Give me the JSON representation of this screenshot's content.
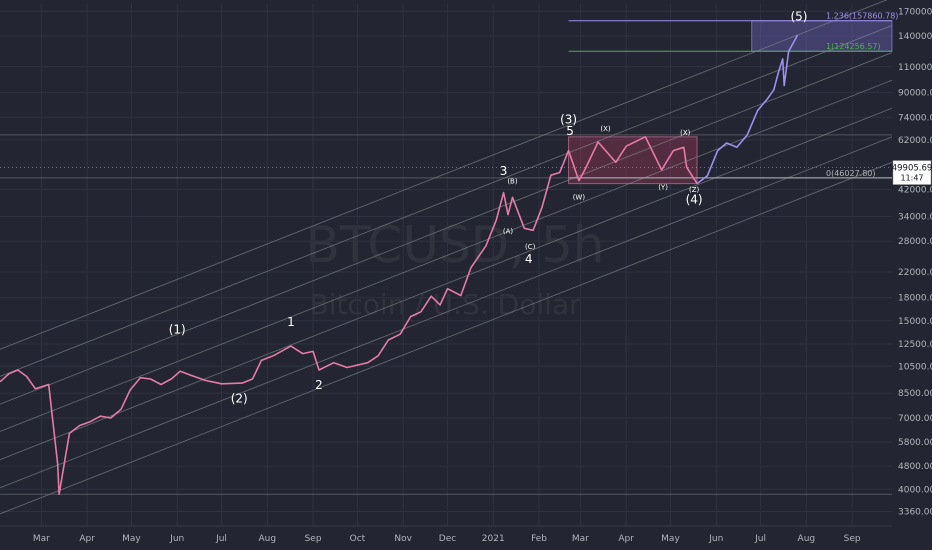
{
  "chart_data": {
    "type": "line",
    "symbol_watermark": "BTCUSD, 5h",
    "description_watermark": "Bitcoin / U.S. Dollar",
    "y_scale": "log",
    "ylim": [
      3000,
      180000
    ],
    "price_ticks": [
      {
        "v": 170000,
        "label": "170000.00"
      },
      {
        "v": 140000,
        "label": "140000.00"
      },
      {
        "v": 110000,
        "label": "110000.00"
      },
      {
        "v": 90000,
        "label": "90000.00"
      },
      {
        "v": 74000,
        "label": "74000.00"
      },
      {
        "v": 62000,
        "label": "62000.00"
      },
      {
        "v": 42000,
        "label": "42000.00"
      },
      {
        "v": 34000,
        "label": "34000.00"
      },
      {
        "v": 28000,
        "label": "28000.00"
      },
      {
        "v": 22000,
        "label": "22000.00"
      },
      {
        "v": 18000,
        "label": "18000.00"
      },
      {
        "v": 15000,
        "label": "15000.00"
      },
      {
        "v": 12500,
        "label": "12500.00"
      },
      {
        "v": 10500,
        "label": "10500.00"
      },
      {
        "v": 8500,
        "label": "8500.00"
      },
      {
        "v": 7000,
        "label": "7000.00"
      },
      {
        "v": 5800,
        "label": "5800.00"
      },
      {
        "v": 4800,
        "label": "4800.00"
      },
      {
        "v": 4000,
        "label": "4000.00"
      },
      {
        "v": 3360,
        "label": "3360.00"
      }
    ],
    "time_ticks": [
      {
        "t": "2020-03-01",
        "label": "Mar"
      },
      {
        "t": "2020-04-01",
        "label": "Apr"
      },
      {
        "t": "2020-05-01",
        "label": "May"
      },
      {
        "t": "2020-06-01",
        "label": "Jun"
      },
      {
        "t": "2020-07-01",
        "label": "Jul"
      },
      {
        "t": "2020-08-01",
        "label": "Aug"
      },
      {
        "t": "2020-09-01",
        "label": "Sep"
      },
      {
        "t": "2020-10-01",
        "label": "Oct"
      },
      {
        "t": "2020-11-01",
        "label": "Nov"
      },
      {
        "t": "2020-12-01",
        "label": "Dec"
      },
      {
        "t": "2021-01-01",
        "label": "2021"
      },
      {
        "t": "2021-02-01",
        "label": "Feb"
      },
      {
        "t": "2021-03-01",
        "label": "Mar"
      },
      {
        "t": "2021-04-01",
        "label": "Apr"
      },
      {
        "t": "2021-05-01",
        "label": "May"
      },
      {
        "t": "2021-06-01",
        "label": "Jun"
      },
      {
        "t": "2021-07-01",
        "label": "Jul"
      },
      {
        "t": "2021-08-01",
        "label": "Aug"
      },
      {
        "t": "2021-09-01",
        "label": "Sep"
      }
    ],
    "xlim": [
      "2020-02-02",
      "2021-09-28"
    ],
    "series": [
      {
        "color": "#e57ba6",
        "points": [
          [
            "2020-02-02",
            9300
          ],
          [
            "2020-02-08",
            9900
          ],
          [
            "2020-02-14",
            10200
          ],
          [
            "2020-02-20",
            9700
          ],
          [
            "2020-02-26",
            8800
          ],
          [
            "2020-03-06",
            9100
          ],
          [
            "2020-03-12",
            4900
          ],
          [
            "2020-03-13",
            3850
          ],
          [
            "2020-03-20",
            6200
          ],
          [
            "2020-03-27",
            6600
          ],
          [
            "2020-04-03",
            6800
          ],
          [
            "2020-04-10",
            7100
          ],
          [
            "2020-04-17",
            7000
          ],
          [
            "2020-04-24",
            7500
          ],
          [
            "2020-04-30",
            8700
          ],
          [
            "2020-05-07",
            9600
          ],
          [
            "2020-05-14",
            9500
          ],
          [
            "2020-05-21",
            9100
          ],
          [
            "2020-05-28",
            9500
          ],
          [
            "2020-06-03",
            10100
          ],
          [
            "2020-06-10",
            9800
          ],
          [
            "2020-06-20",
            9400
          ],
          [
            "2020-07-01",
            9150
          ],
          [
            "2020-07-15",
            9200
          ],
          [
            "2020-07-22",
            9500
          ],
          [
            "2020-07-28",
            11000
          ],
          [
            "2020-08-05",
            11400
          ],
          [
            "2020-08-17",
            12300
          ],
          [
            "2020-08-25",
            11600
          ],
          [
            "2020-09-01",
            11800
          ],
          [
            "2020-09-05",
            10200
          ],
          [
            "2020-09-15",
            10800
          ],
          [
            "2020-09-24",
            10400
          ],
          [
            "2020-10-08",
            10800
          ],
          [
            "2020-10-15",
            11400
          ],
          [
            "2020-10-22",
            12900
          ],
          [
            "2020-10-30",
            13500
          ],
          [
            "2020-11-06",
            15500
          ],
          [
            "2020-11-13",
            16100
          ],
          [
            "2020-11-20",
            18200
          ],
          [
            "2020-11-26",
            17000
          ],
          [
            "2020-12-01",
            19300
          ],
          [
            "2020-12-10",
            18300
          ],
          [
            "2020-12-17",
            22800
          ],
          [
            "2020-12-27",
            27000
          ],
          [
            "2021-01-03",
            33000
          ],
          [
            "2021-01-08",
            41000
          ],
          [
            "2021-01-11",
            34500
          ],
          [
            "2021-01-14",
            39500
          ],
          [
            "2021-01-22",
            31000
          ],
          [
            "2021-01-28",
            30500
          ],
          [
            "2021-02-03",
            36500
          ],
          [
            "2021-02-09",
            47000
          ],
          [
            "2021-02-15",
            48000
          ],
          [
            "2021-02-21",
            57000
          ],
          [
            "2021-02-28",
            45000
          ],
          [
            "2021-03-04",
            49000
          ],
          [
            "2021-03-13",
            61000
          ],
          [
            "2021-03-25",
            52000
          ],
          [
            "2021-04-01",
            59000
          ],
          [
            "2021-04-14",
            63500
          ],
          [
            "2021-04-25",
            49000
          ],
          [
            "2021-05-03",
            57000
          ],
          [
            "2021-05-10",
            58500
          ],
          [
            "2021-05-12",
            50000
          ],
          [
            "2021-05-19",
            44000
          ]
        ]
      },
      {
        "color": "#9e8ff0",
        "points": [
          [
            "2021-05-19",
            44000
          ],
          [
            "2021-05-26",
            46800
          ],
          [
            "2021-06-02",
            57000
          ],
          [
            "2021-06-08",
            60500
          ],
          [
            "2021-06-15",
            58500
          ],
          [
            "2021-06-22",
            64500
          ],
          [
            "2021-06-29",
            78000
          ],
          [
            "2021-07-06",
            86000
          ],
          [
            "2021-07-10",
            92000
          ],
          [
            "2021-07-13",
            105000
          ],
          [
            "2021-07-16",
            117000
          ],
          [
            "2021-07-17",
            95000
          ],
          [
            "2021-07-20",
            124000
          ],
          [
            "2021-07-24",
            135000
          ],
          [
            "2021-07-26",
            141000
          ]
        ]
      }
    ],
    "wave_labels": [
      {
        "text": "(1)",
        "t": "2020-06-01",
        "v": 13600,
        "size": 12
      },
      {
        "text": "(2)",
        "t": "2020-07-13",
        "v": 7900,
        "size": 12
      },
      {
        "text": "1",
        "t": "2020-08-17",
        "v": 14400,
        "size": 12
      },
      {
        "text": "2",
        "t": "2020-09-05",
        "v": 8800,
        "size": 12
      },
      {
        "text": "3",
        "t": "2021-01-08",
        "v": 47000,
        "size": 12
      },
      {
        "text": "(B)",
        "t": "2021-01-14",
        "v": 44000,
        "size": 7
      },
      {
        "text": "(A)",
        "t": "2021-01-11",
        "v": 29800,
        "size": 7
      },
      {
        "text": "(C)",
        "t": "2021-01-26",
        "v": 26300,
        "size": 7
      },
      {
        "text": "4",
        "t": "2021-01-25",
        "v": 23600,
        "size": 12
      },
      {
        "text": "(3)",
        "t": "2021-02-21",
        "v": 70500,
        "size": 12
      },
      {
        "text": "5",
        "t": "2021-02-22",
        "v": 64500,
        "size": 12
      },
      {
        "text": "(X)",
        "t": "2021-03-18",
        "v": 66500,
        "size": 7
      },
      {
        "text": "(W)",
        "t": "2021-02-28",
        "v": 38900,
        "size": 7
      },
      {
        "text": "(X)",
        "t": "2021-05-11",
        "v": 64500,
        "size": 7
      },
      {
        "text": "(Y)",
        "t": "2021-04-26",
        "v": 42000,
        "size": 7
      },
      {
        "text": "(Z)",
        "t": "2021-05-17",
        "v": 41200,
        "size": 7
      },
      {
        "text": "(4)",
        "t": "2021-05-17",
        "v": 37700,
        "size": 12
      },
      {
        "text": "(5)",
        "t": "2021-07-27",
        "v": 158000,
        "size": 12
      }
    ],
    "fib_levels": [
      {
        "label": "1.236(157860.78)",
        "v": 157860.78,
        "color": "#9e8ff0"
      },
      {
        "label": "1(124256.57)",
        "v": 124256.57,
        "color": "#4caf50"
      },
      {
        "label": "0(46027.80)",
        "v": 46027.8,
        "color": "#b2b5be"
      }
    ],
    "fib_start": "2021-02-21",
    "rect_consolidation": {
      "t1": "2021-02-21",
      "t2": "2021-05-19",
      "v1": 44000,
      "v2": 63500
    },
    "rect_target": {
      "t1": "2021-06-25",
      "t2": "2021-09-28",
      "v1": 124256.57,
      "v2": 157860.78
    },
    "horizontal_lines": [
      64500,
      46027.8,
      3850
    ],
    "channel_lines": [
      {
        "t1": "2020-02-02",
        "v1": 3300,
        "t2": "2021-09-28",
        "v2": 52000
      },
      {
        "t1": "2020-02-02",
        "v1": 4050,
        "t2": "2021-09-28",
        "v2": 63500
      },
      {
        "t1": "2020-02-02",
        "v1": 5050,
        "t2": "2021-09-28",
        "v2": 79500
      },
      {
        "t1": "2020-02-02",
        "v1": 6300,
        "t2": "2021-09-28",
        "v2": 99000
      },
      {
        "t1": "2020-02-02",
        "v1": 7800,
        "t2": "2021-09-28",
        "v2": 123000
      },
      {
        "t1": "2020-02-02",
        "v1": 9700,
        "t2": "2021-09-28",
        "v2": 152000
      },
      {
        "t1": "2020-02-02",
        "v1": 12000,
        "t2": "2021-09-28",
        "v2": 189000
      }
    ],
    "last_price": {
      "value": 49905.69,
      "label": "49905.69",
      "countdown": "11:47"
    },
    "colors": {
      "background": "#232632",
      "grid": "#2e3140",
      "axis_text": "#b2b5be",
      "channel": "#8c8f98"
    }
  }
}
